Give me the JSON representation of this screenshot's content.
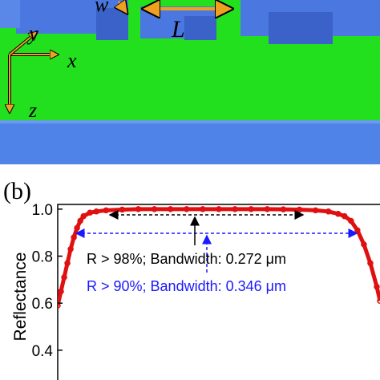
{
  "panel_a": {
    "labels": [
      "w",
      "L",
      "y",
      "x",
      "z"
    ]
  },
  "panel_label": "(b)",
  "chart_data": {
    "type": "scatter",
    "ylabel": "Reflectance",
    "color": "#e01010",
    "xlim": [
      0,
      100
    ],
    "ylim": [
      0.28,
      1.02
    ],
    "yticks": [
      {
        "value": 0.4,
        "label": "0.4"
      },
      0.6,
      0.8,
      {
        "value": 1,
        "label": "1.0"
      }
    ],
    "x": [
      0,
      1,
      2,
      3,
      4,
      5,
      6,
      7,
      8,
      10,
      12,
      15,
      20,
      25,
      30,
      35,
      40,
      45,
      50,
      55,
      60,
      65,
      70,
      75,
      80,
      84,
      87,
      89,
      91,
      93,
      95,
      97,
      99,
      100
    ],
    "values": [
      0.59,
      0.65,
      0.71,
      0.77,
      0.83,
      0.88,
      0.92,
      0.95,
      0.97,
      0.985,
      0.99,
      0.995,
      0.998,
      1,
      1,
      1,
      1,
      1,
      1,
      1,
      1,
      1,
      0.999,
      0.998,
      0.995,
      0.99,
      0.98,
      0.97,
      0.95,
      0.91,
      0.85,
      0.77,
      0.67,
      0.61
    ],
    "annotations": [
      {
        "text": "R > 98%; Bandwidth: 0.272 μm",
        "color": "#000000"
      },
      {
        "text": "R > 90%; Bandwidth: 0.346 μm",
        "color": "#1a1aff"
      }
    ]
  }
}
